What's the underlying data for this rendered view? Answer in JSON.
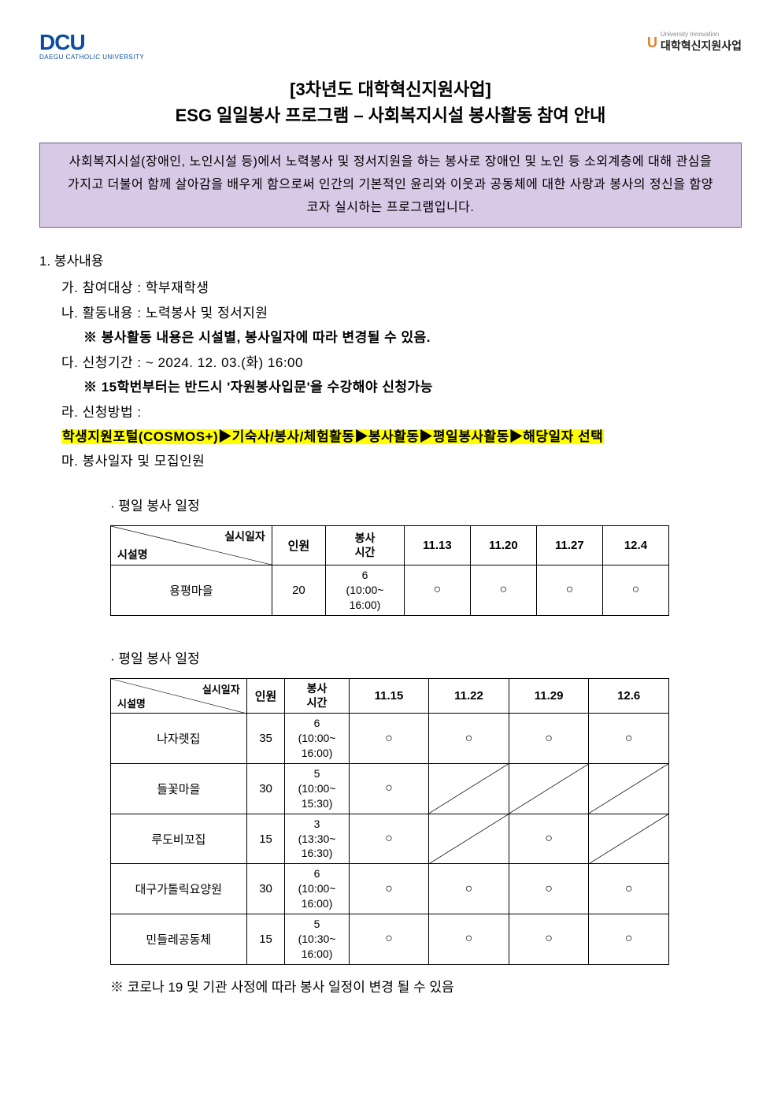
{
  "logo_left": {
    "main": "DCU",
    "sub": "DAEGU CATHOLIC UNIVERSITY"
  },
  "logo_right": {
    "tiny": "University Innovation",
    "text": "대학혁신지원사업"
  },
  "title": {
    "line1": "[3차년도 대학혁신지원사업]",
    "line2": "ESG 일일봉사 프로그램 – 사회복지시설 봉사활동 참여 안내"
  },
  "intro": "사회복지시설(장애인, 노인시설 등)에서 노력봉사 및 정서지원을 하는 봉사로 장애인 및 노인 등 소외계층에 대해 관심을 가지고 더불어 함께 살아감을 배우게 함으로써 인간의 기본적인 윤리와 이웃과 공동체에 대한 사랑과 봉사의 정신을 함양코자 실시하는 프로그램입니다.",
  "section1_title": "1. 봉사내용",
  "items": {
    "a": "가. 참여대상 : 학부재학생",
    "b": "나. 활동내용 : 노력봉사 및 정서지원",
    "b_note": "※ 봉사활동 내용은 시설별, 봉사일자에 따라 변경될 수 있음.",
    "c": "다. 신청기간 :  ~ 2024. 12. 03.(화) 16:00",
    "c_note": "※ 15학번부터는 반드시 '자원봉사입문'을 수강해야 신청가능",
    "d": "라. 신청방법 :",
    "d_highlight": "학생지원포털(COSMOS+)▶기숙사/봉사/체험활동▶봉사활동▶평일봉사활동▶해당일자 선택",
    "e": "마. 봉사일자 및 모집인원"
  },
  "schedule1_title": "· 평일 봉사 일정",
  "table1": {
    "diag_top": "실시일자",
    "diag_bottom": "시설명",
    "headers": [
      "인원",
      "봉사\n시간",
      "11.13",
      "11.20",
      "11.27",
      "12.4"
    ],
    "row": {
      "name": "용평마을",
      "capacity": "20",
      "time": "6\n(10:00~\n16:00)",
      "marks": [
        "○",
        "○",
        "○",
        "○"
      ]
    }
  },
  "schedule2_title": "· 평일 봉사 일정",
  "table2": {
    "diag_top": "실시일자",
    "diag_bottom": "시설명",
    "headers": [
      "인원",
      "봉사\n시간",
      "11.15",
      "11.22",
      "11.29",
      "12.6"
    ],
    "rows": [
      {
        "name": "나자렛집",
        "capacity": "35",
        "time": "6\n(10:00~\n16:00)",
        "marks": [
          "○",
          "○",
          "○",
          "○"
        ]
      },
      {
        "name": "들꽃마을",
        "capacity": "30",
        "time": "5\n(10:00~\n15:30)",
        "marks": [
          "○",
          "/",
          "/",
          "/"
        ]
      },
      {
        "name": "루도비꼬집",
        "capacity": "15",
        "time": "3\n(13:30~\n16:30)",
        "marks": [
          "○",
          "/",
          "○",
          "/"
        ]
      },
      {
        "name": "대구가톨릭요양원",
        "capacity": "30",
        "time": "6\n(10:00~\n16:00)",
        "marks": [
          "○",
          "○",
          "○",
          "○"
        ]
      },
      {
        "name": "민들레공동체",
        "capacity": "15",
        "time": "5\n(10:30~\n16:00)",
        "marks": [
          "○",
          "○",
          "○",
          "○"
        ]
      }
    ]
  },
  "footnote": "※  코로나 19 및 기관 사정에 따라 봉사 일정이 변경 될 수 있음",
  "colors": {
    "intro_bg": "#d8c9e6",
    "intro_border": "#6b5b8a",
    "logo_blue": "#0b4da2",
    "highlight": "#ffff00"
  }
}
